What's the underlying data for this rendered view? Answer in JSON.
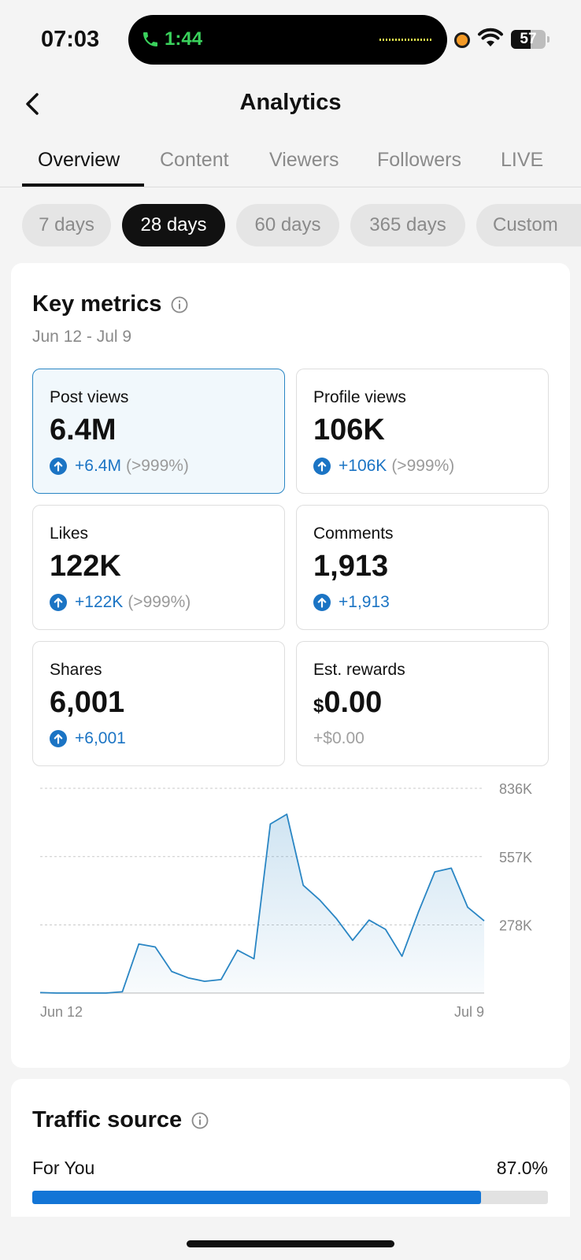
{
  "status_bar": {
    "time": "07:03",
    "call_time": "1:44",
    "battery": "57",
    "battery_level": 0.57
  },
  "header": {
    "title": "Analytics",
    "back_icon": "chevron-left-icon"
  },
  "tabs": [
    {
      "label": "Overview",
      "active": true
    },
    {
      "label": "Content",
      "active": false
    },
    {
      "label": "Viewers",
      "active": false
    },
    {
      "label": "Followers",
      "active": false
    },
    {
      "label": "LIVE",
      "active": false
    }
  ],
  "ranges": [
    {
      "label": "7 days",
      "active": false
    },
    {
      "label": "28 days",
      "active": true
    },
    {
      "label": "60 days",
      "active": false
    },
    {
      "label": "365 days",
      "active": false
    },
    {
      "label": "Custom",
      "active": false
    }
  ],
  "key_metrics": {
    "title": "Key metrics",
    "date_range": "Jun 12 - Jul 9",
    "metrics": [
      {
        "label": "Post views",
        "value": "6.4M",
        "delta": "+6.4M",
        "pct": "(>999%)"
      },
      {
        "label": "Profile views",
        "value": "106K",
        "delta": "+106K",
        "pct": "(>999%)"
      },
      {
        "label": "Likes",
        "value": "122K",
        "delta": "+122K",
        "pct": "(>999%)"
      },
      {
        "label": "Comments",
        "value": "1,913",
        "delta": "+1,913",
        "pct": ""
      },
      {
        "label": "Shares",
        "value": "6,001",
        "delta": "+6,001",
        "pct": ""
      },
      {
        "label": "Est. rewards",
        "currency": "$",
        "value": "0.00",
        "delta": "+$0.00",
        "pct": ""
      }
    ]
  },
  "chart_data": {
    "type": "area",
    "y_tick_labels": [
      "836K",
      "557K",
      "278K"
    ],
    "y_ticks": [
      836000,
      557000,
      278000
    ],
    "ylim": [
      0,
      836000
    ],
    "x_tick_labels": [
      "Jun 12",
      "Jul 9"
    ],
    "x": [
      "Jun 12",
      "Jun 13",
      "Jun 14",
      "Jun 15",
      "Jun 16",
      "Jun 17",
      "Jun 18",
      "Jun 19",
      "Jun 20",
      "Jun 21",
      "Jun 22",
      "Jun 23",
      "Jun 24",
      "Jun 25",
      "Jun 26",
      "Jun 27",
      "Jun 28",
      "Jun 29",
      "Jun 30",
      "Jul 1",
      "Jul 2",
      "Jul 3",
      "Jul 4",
      "Jul 5",
      "Jul 6",
      "Jul 7",
      "Jul 8",
      "Jul 9"
    ],
    "values": [
      2000,
      0,
      0,
      0,
      0,
      5000,
      200000,
      188000,
      88000,
      62000,
      48000,
      55000,
      175000,
      140000,
      690000,
      730000,
      440000,
      380000,
      305000,
      215000,
      298000,
      260000,
      150000,
      330000,
      495000,
      510000,
      350000,
      295000
    ],
    "grid": true,
    "color": "#2a86c4"
  },
  "traffic_source": {
    "title": "Traffic source",
    "items": [
      {
        "label": "For You",
        "value": "87.0%",
        "fraction": 0.87
      }
    ]
  },
  "colors": {
    "accent_blue": "#1b74c4",
    "bar_blue": "#1375d6",
    "call_green": "#3ad15c"
  }
}
